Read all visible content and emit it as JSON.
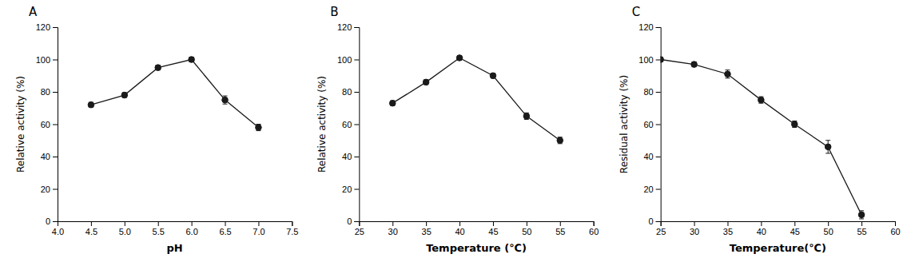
{
  "chart_data": [
    {
      "type": "line",
      "title": "A",
      "x": [
        4.5,
        5.0,
        5.5,
        6.0,
        6.5,
        7.0
      ],
      "values": [
        72,
        78,
        95,
        100,
        75,
        58
      ],
      "yerr": [
        1.5,
        1.5,
        1.5,
        1.5,
        2.5,
        2.0
      ],
      "xlabel": "pH",
      "ylabel": "Relative activity (%)",
      "xlim": [
        4.0,
        7.5
      ],
      "ylim": [
        0,
        120
      ],
      "xticks": [
        {
          "value": 4.0,
          "label": "4.0"
        },
        4.5,
        {
          "value": 5.0,
          "label": "5.0"
        },
        5.5,
        {
          "value": 6.0,
          "label": "6.0"
        },
        6.5,
        {
          "value": 7.0,
          "label": "7.0"
        },
        7.5
      ],
      "yticks": [
        0,
        20,
        40,
        60,
        80,
        100,
        120
      ],
      "color": "#1a1a1a",
      "marker": "circle",
      "line_style": "solid",
      "grid": false
    },
    {
      "type": "line",
      "title": "B",
      "x": [
        30,
        35,
        40,
        45,
        50,
        55
      ],
      "values": [
        73,
        86,
        101,
        90,
        65,
        50
      ],
      "yerr": [
        1.5,
        1.5,
        1.5,
        1.5,
        2.0,
        2.0
      ],
      "xlabel": "Temperature (℃)",
      "ylabel": "Relative activity (%)",
      "xlim": [
        25,
        60
      ],
      "ylim": [
        0,
        120
      ],
      "xticks": [
        25,
        30,
        35,
        40,
        45,
        50,
        55,
        60
      ],
      "yticks": [
        0,
        20,
        40,
        60,
        80,
        100,
        120
      ],
      "color": "#1a1a1a",
      "marker": "circle",
      "line_style": "solid",
      "grid": false
    },
    {
      "type": "line",
      "title": "C",
      "x": [
        25,
        30,
        35,
        40,
        45,
        50,
        55
      ],
      "values": [
        100,
        97,
        91,
        75,
        60,
        46,
        4
      ],
      "yerr": [
        1.5,
        1.5,
        2.5,
        2.0,
        2.0,
        4.0,
        2.5
      ],
      "xlabel": "Temperature(℃)",
      "ylabel": "Residual activity (%)",
      "xlim": [
        25,
        60
      ],
      "ylim": [
        0,
        120
      ],
      "xticks": [
        25,
        30,
        35,
        40,
        45,
        50,
        55,
        60
      ],
      "yticks": [
        0,
        20,
        40,
        60,
        80,
        100,
        120
      ],
      "color": "#1a1a1a",
      "marker": "circle",
      "line_style": "solid",
      "grid": false
    }
  ]
}
